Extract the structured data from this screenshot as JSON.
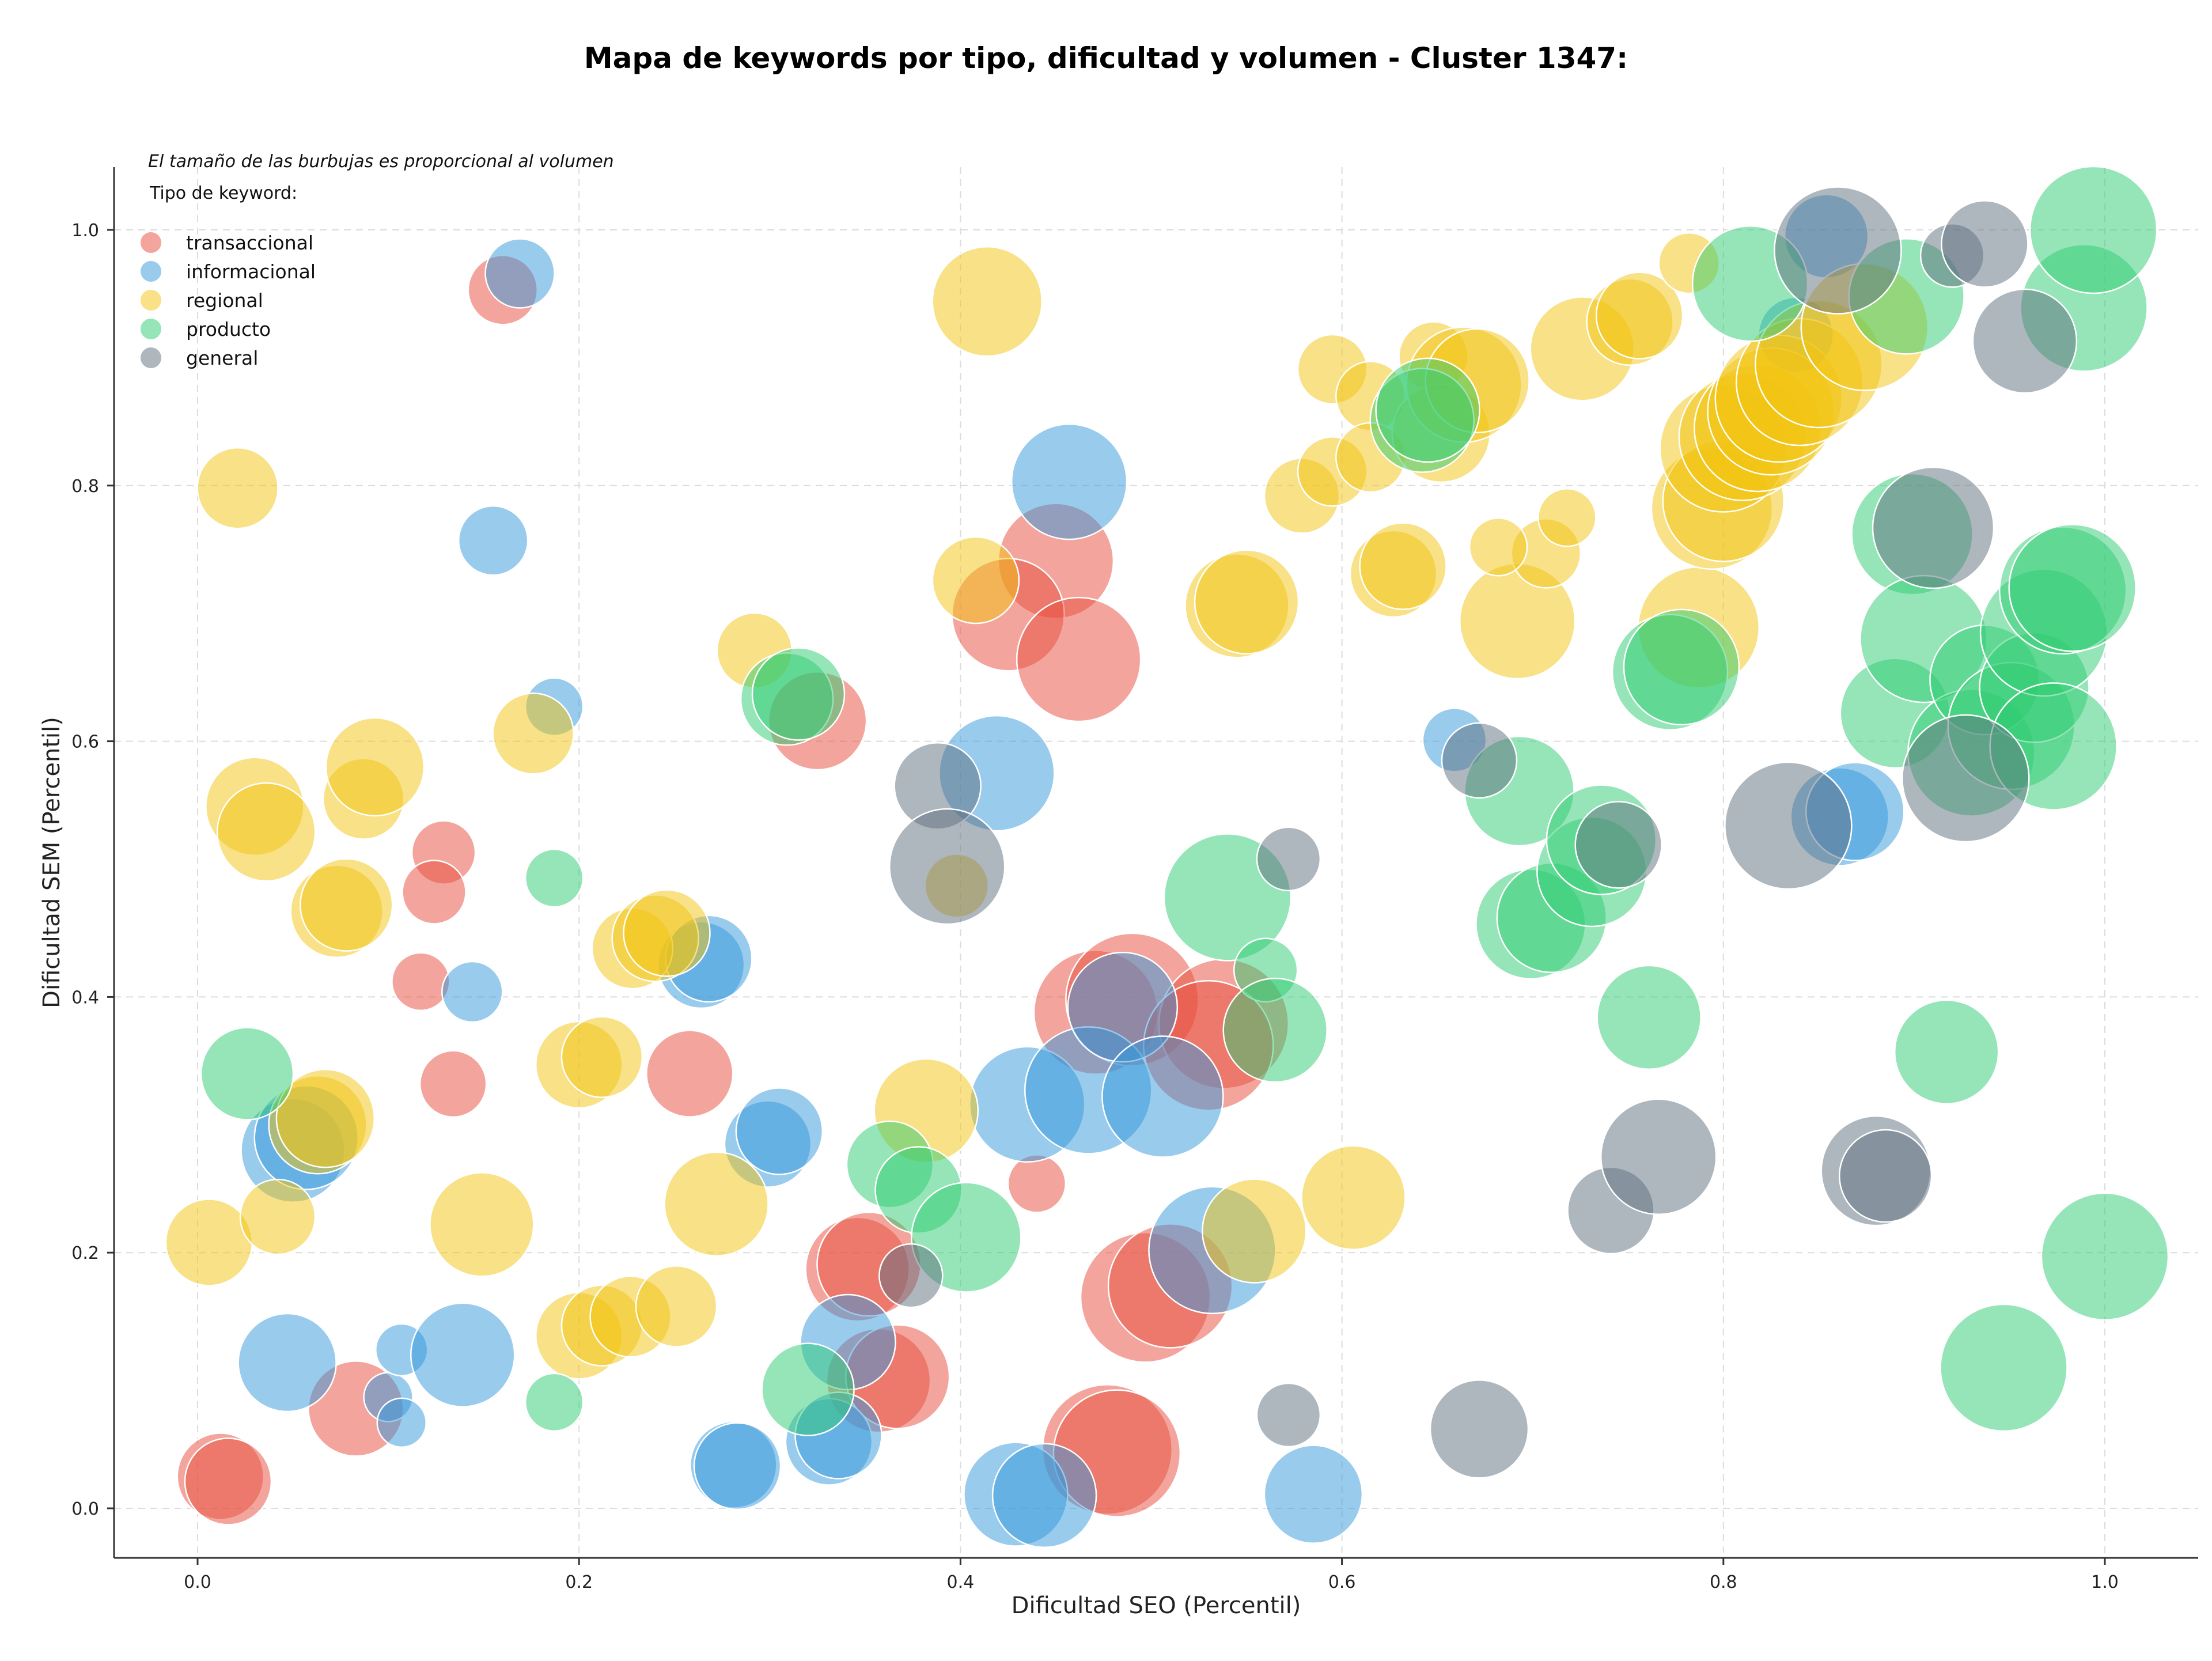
{
  "chart_data": {
    "type": "scatter",
    "title": "Mapa de keywords por tipo, dificultad y volumen - Cluster 1347:",
    "xlabel": "Dificultad SEO (Percentil)",
    "ylabel": "Dificultad SEM (Percentil)",
    "note": "El tamaño de las burbujas es proporcional al volumen",
    "legend_title": "Tipo de keyword:",
    "legend_position": "top-left",
    "grid": true,
    "xlim": [
      -0.045,
      1.05
    ],
    "ylim": [
      -0.04,
      1.05
    ],
    "x_ticks": [
      "0.0",
      "0.2",
      "0.4",
      "0.6",
      "0.8",
      "1.0"
    ],
    "y_ticks": [
      "0.0",
      "0.2",
      "0.4",
      "0.6",
      "0.8",
      "1.0"
    ],
    "series": [
      {
        "name": "transaccional",
        "color": "#e74c3c",
        "points": [
          [
            0.16,
            0.953,
            2.4
          ],
          [
            0.117,
            0.412,
            2.0
          ],
          [
            0.129,
            0.513,
            2.2
          ],
          [
            0.124,
            0.482,
            2.2
          ],
          [
            0.134,
            0.332,
            2.3
          ],
          [
            0.258,
            0.34,
            3.0
          ],
          [
            0.325,
            0.616,
            3.4
          ],
          [
            0.45,
            0.741,
            4.0
          ],
          [
            0.425,
            0.699,
            3.9
          ],
          [
            0.462,
            0.664,
            4.3
          ],
          [
            0.44,
            0.254,
            2.0
          ],
          [
            0.012,
            0.025,
            3.0
          ],
          [
            0.016,
            0.021,
            3.0
          ],
          [
            0.083,
            0.078,
            3.3
          ],
          [
            0.346,
            0.187,
            3.6
          ],
          [
            0.352,
            0.191,
            3.6
          ],
          [
            0.357,
            0.1,
            3.6
          ],
          [
            0.367,
            0.103,
            3.6
          ],
          [
            0.471,
            0.388,
            4.3
          ],
          [
            0.49,
            0.398,
            4.6
          ],
          [
            0.538,
            0.379,
            4.5
          ],
          [
            0.53,
            0.362,
            4.5
          ],
          [
            0.497,
            0.165,
            4.5
          ],
          [
            0.51,
            0.174,
            4.3
          ],
          [
            0.477,
            0.046,
            4.5
          ],
          [
            0.482,
            0.043,
            4.4
          ]
        ]
      },
      {
        "name": "informacional",
        "color": "#3498db",
        "points": [
          [
            0.169,
            0.966,
            2.4
          ],
          [
            0.155,
            0.757,
            2.4
          ],
          [
            0.187,
            0.627,
            2.0
          ],
          [
            0.144,
            0.404,
            2.1
          ],
          [
            0.05,
            0.28,
            3.6
          ],
          [
            0.057,
            0.29,
            3.6
          ],
          [
            0.047,
            0.114,
            3.4
          ],
          [
            0.1,
            0.087,
            1.7
          ],
          [
            0.107,
            0.124,
            1.8
          ],
          [
            0.107,
            0.067,
            1.7
          ],
          [
            0.139,
            0.12,
            3.6
          ],
          [
            0.264,
            0.425,
            3.0
          ],
          [
            0.268,
            0.43,
            3.0
          ],
          [
            0.299,
            0.285,
            3.0
          ],
          [
            0.305,
            0.295,
            3.0
          ],
          [
            0.281,
            0.034,
            3.0
          ],
          [
            0.283,
            0.033,
            3.0
          ],
          [
            0.331,
            0.052,
            3.0
          ],
          [
            0.336,
            0.057,
            3.0
          ],
          [
            0.341,
            0.13,
            3.3
          ],
          [
            0.457,
            0.803,
            4.0
          ],
          [
            0.419,
            0.575,
            4.0
          ],
          [
            0.435,
            0.316,
            4.0
          ],
          [
            0.467,
            0.327,
            4.4
          ],
          [
            0.485,
            0.392,
            3.8
          ],
          [
            0.506,
            0.322,
            4.2
          ],
          [
            0.532,
            0.202,
            4.4
          ],
          [
            0.429,
            0.011,
            3.6
          ],
          [
            0.444,
            0.01,
            3.6
          ],
          [
            0.585,
            0.011,
            3.4
          ],
          [
            0.659,
            0.601,
            2.2
          ],
          [
            0.838,
            0.918,
            2.6
          ],
          [
            0.854,
            0.995,
            2.9
          ],
          [
            0.861,
            0.541,
            3.4
          ],
          [
            0.869,
            0.545,
            3.4
          ]
        ]
      },
      {
        "name": "regional",
        "color": "#f1c40f",
        "points": [
          [
            0.021,
            0.798,
            2.8
          ],
          [
            0.006,
            0.208,
            3.0
          ],
          [
            0.03,
            0.549,
            3.4
          ],
          [
            0.036,
            0.529,
            3.4
          ],
          [
            0.042,
            0.228,
            2.6
          ],
          [
            0.063,
            0.3,
            3.4
          ],
          [
            0.067,
            0.305,
            3.4
          ],
          [
            0.073,
            0.467,
            3.2
          ],
          [
            0.078,
            0.472,
            3.2
          ],
          [
            0.087,
            0.555,
            2.8
          ],
          [
            0.093,
            0.58,
            3.4
          ],
          [
            0.149,
            0.222,
            3.6
          ],
          [
            0.176,
            0.606,
            2.8
          ],
          [
            0.2,
            0.347,
            3.0
          ],
          [
            0.212,
            0.353,
            2.8
          ],
          [
            0.2,
            0.135,
            3.0
          ],
          [
            0.212,
            0.143,
            2.8
          ],
          [
            0.227,
            0.15,
            2.8
          ],
          [
            0.228,
            0.438,
            2.8
          ],
          [
            0.24,
            0.446,
            3.0
          ],
          [
            0.246,
            0.45,
            3.0
          ],
          [
            0.251,
            0.158,
            2.8
          ],
          [
            0.272,
            0.238,
            3.6
          ],
          [
            0.292,
            0.671,
            2.6
          ],
          [
            0.382,
            0.311,
            3.6
          ],
          [
            0.398,
            0.487,
            2.2
          ],
          [
            0.408,
            0.726,
            3.0
          ],
          [
            0.414,
            0.944,
            3.8
          ],
          [
            0.545,
            0.706,
            3.6
          ],
          [
            0.55,
            0.709,
            3.6
          ],
          [
            0.554,
            0.217,
            3.6
          ],
          [
            0.579,
            0.792,
            2.6
          ],
          [
            0.595,
            0.891,
            2.4
          ],
          [
            0.595,
            0.811,
            2.4
          ],
          [
            0.606,
            0.243,
            3.6
          ],
          [
            0.615,
            0.87,
            2.4
          ],
          [
            0.615,
            0.822,
            2.4
          ],
          [
            0.627,
            0.731,
            3.0
          ],
          [
            0.632,
            0.737,
            3.0
          ],
          [
            0.648,
            0.901,
            2.4
          ],
          [
            0.652,
            0.841,
            3.4
          ],
          [
            0.664,
            0.879,
            4.0
          ],
          [
            0.671,
            0.882,
            3.6
          ],
          [
            0.692,
            0.694,
            4.0
          ],
          [
            0.707,
            0.747,
            2.4
          ],
          [
            0.682,
            0.752,
            2.0
          ],
          [
            0.718,
            0.775,
            2.0
          ],
          [
            0.726,
            0.907,
            3.6
          ],
          [
            0.751,
            0.928,
            3.0
          ],
          [
            0.756,
            0.933,
            3.0
          ],
          [
            0.782,
            0.974,
            2.1
          ],
          [
            0.787,
            0.689,
            4.2
          ],
          [
            0.794,
            0.782,
            4.2
          ],
          [
            0.8,
            0.788,
            4.2
          ],
          [
            0.8,
            0.829,
            4.4
          ],
          [
            0.81,
            0.838,
            4.4
          ],
          [
            0.818,
            0.845,
            4.4
          ],
          [
            0.825,
            0.858,
            4.4
          ],
          [
            0.829,
            0.868,
            4.4
          ],
          [
            0.84,
            0.881,
            4.4
          ],
          [
            0.85,
            0.895,
            4.4
          ],
          [
            0.874,
            0.924,
            4.4
          ]
        ]
      },
      {
        "name": "producto",
        "color": "#2ecc71",
        "points": [
          [
            0.026,
            0.34,
            3.2
          ],
          [
            0.187,
            0.493,
            2.0
          ],
          [
            0.187,
            0.083,
            2.0
          ],
          [
            0.309,
            0.633,
            3.2
          ],
          [
            0.315,
            0.637,
            3.2
          ],
          [
            0.32,
            0.093,
            3.2
          ],
          [
            0.363,
            0.269,
            3.0
          ],
          [
            0.378,
            0.249,
            3.0
          ],
          [
            0.403,
            0.212,
            3.8
          ],
          [
            0.54,
            0.478,
            4.4
          ],
          [
            0.56,
            0.421,
            2.2
          ],
          [
            0.565,
            0.374,
            3.6
          ],
          [
            0.642,
            0.851,
            3.6
          ],
          [
            0.645,
            0.859,
            3.6
          ],
          [
            0.693,
            0.561,
            3.8
          ],
          [
            0.699,
            0.457,
            3.8
          ],
          [
            0.71,
            0.462,
            3.8
          ],
          [
            0.731,
            0.498,
            3.8
          ],
          [
            0.736,
            0.523,
            3.8
          ],
          [
            0.761,
            0.384,
            3.6
          ],
          [
            0.772,
            0.654,
            4.0
          ],
          [
            0.778,
            0.658,
            4.0
          ],
          [
            0.814,
            0.958,
            4.0
          ],
          [
            0.89,
            0.622,
            3.8
          ],
          [
            0.896,
            0.948,
            4.0
          ],
          [
            0.899,
            0.762,
            4.2
          ],
          [
            0.905,
            0.68,
            4.4
          ],
          [
            0.917,
            0.357,
            3.6
          ],
          [
            0.93,
            0.591,
            4.4
          ],
          [
            0.937,
            0.648,
            3.8
          ],
          [
            0.947,
            0.11,
            4.4
          ],
          [
            0.951,
            0.612,
            4.4
          ],
          [
            0.963,
            0.642,
            3.8
          ],
          [
            0.968,
            0.685,
            4.4
          ],
          [
            0.973,
            0.596,
            4.4
          ],
          [
            0.978,
            0.718,
            4.4
          ],
          [
            0.983,
            0.72,
            4.4
          ],
          [
            0.989,
            0.939,
            4.4
          ],
          [
            0.994,
            1.0,
            4.4
          ],
          [
            1.0,
            0.197,
            4.4
          ]
        ]
      },
      {
        "name": "general",
        "color": "#5d6d7e",
        "points": [
          [
            0.374,
            0.182,
            2.2
          ],
          [
            0.388,
            0.565,
            3.0
          ],
          [
            0.393,
            0.502,
            4.0
          ],
          [
            0.572,
            0.508,
            2.2
          ],
          [
            0.572,
            0.073,
            2.2
          ],
          [
            0.672,
            0.585,
            2.6
          ],
          [
            0.672,
            0.062,
            3.4
          ],
          [
            0.741,
            0.233,
            3.0
          ],
          [
            0.745,
            0.519,
            3.0
          ],
          [
            0.766,
            0.275,
            4.0
          ],
          [
            0.834,
            0.534,
            4.4
          ],
          [
            0.86,
            0.984,
            4.4
          ],
          [
            0.88,
            0.264,
            3.8
          ],
          [
            0.885,
            0.26,
            3.2
          ],
          [
            0.91,
            0.767,
            4.2
          ],
          [
            0.92,
            0.98,
            2.2
          ],
          [
            0.927,
            0.571,
            4.4
          ],
          [
            0.937,
            0.989,
            3.0
          ],
          [
            0.958,
            0.913,
            3.6
          ]
        ]
      }
    ]
  }
}
